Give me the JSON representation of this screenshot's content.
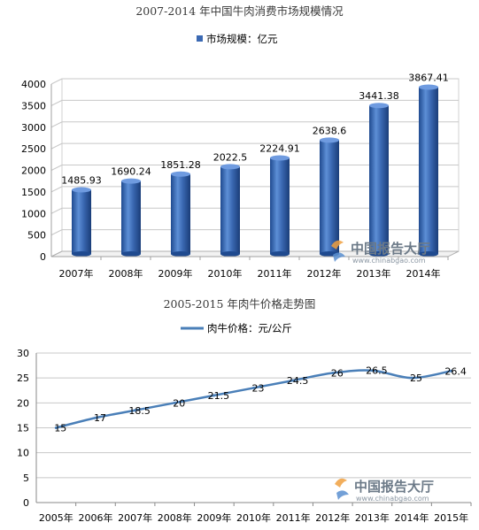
{
  "charts": [
    {
      "title": "2007-2014 年中国牛肉消费市场规模情况",
      "watermark": {
        "cn": "中国报告大厅",
        "en": "www.chinabgao.com"
      }
    },
    {
      "title": "2005-2015 年肉牛价格走势图",
      "watermark": {
        "cn": "中国报告大厅",
        "en": "www.chinabgao.com"
      }
    }
  ],
  "colors": {
    "bar": "#3b69b3",
    "line": "#4a7fb8",
    "grid": "#c8c8c8"
  },
  "chart_data": [
    {
      "type": "bar",
      "title": "2007-2014 年中国牛肉消费市场规模情况",
      "categories": [
        "2007年",
        "2008年",
        "2009年",
        "2010年",
        "2011年",
        "2012年",
        "2013年",
        "2014年"
      ],
      "series": [
        {
          "name": "市场规模：亿元",
          "values": [
            1485.93,
            1690.24,
            1851.28,
            2022.5,
            2224.91,
            2638.6,
            3441.38,
            3867.41
          ],
          "labels": [
            "1485.93",
            "1690.24",
            "1851.28",
            "2022.5",
            "2224.91",
            "2638.6",
            "3441.38",
            "3867.41"
          ]
        }
      ],
      "yticks": [
        "0",
        "500",
        "1000",
        "1500",
        "2000",
        "2500",
        "3000",
        "3500",
        "4000"
      ],
      "ylim": [
        0,
        4000
      ],
      "style": "3d-cylinder",
      "grid": true,
      "legend": "top"
    },
    {
      "type": "line",
      "title": "2005-2015 年肉牛价格走势图",
      "categories": [
        "2005年",
        "2006年",
        "2007年",
        "2008年",
        "2009年",
        "2010年",
        "2011年",
        "2012年",
        "2013年",
        "2014年",
        "2015年"
      ],
      "series": [
        {
          "name": "肉牛价格：元/公斤",
          "values": [
            15,
            17,
            18.5,
            20,
            21.5,
            23,
            24.5,
            26,
            26.5,
            25,
            26.4
          ],
          "labels": [
            "15",
            "17",
            "18.5",
            "20",
            "21.5",
            "23",
            "24.5",
            "26",
            "26.5",
            "25",
            "26.4"
          ]
        }
      ],
      "yticks": [
        "0",
        "5",
        "10",
        "15",
        "20",
        "25",
        "30"
      ],
      "ylim": [
        0,
        30
      ],
      "grid": true,
      "legend": "top"
    }
  ]
}
